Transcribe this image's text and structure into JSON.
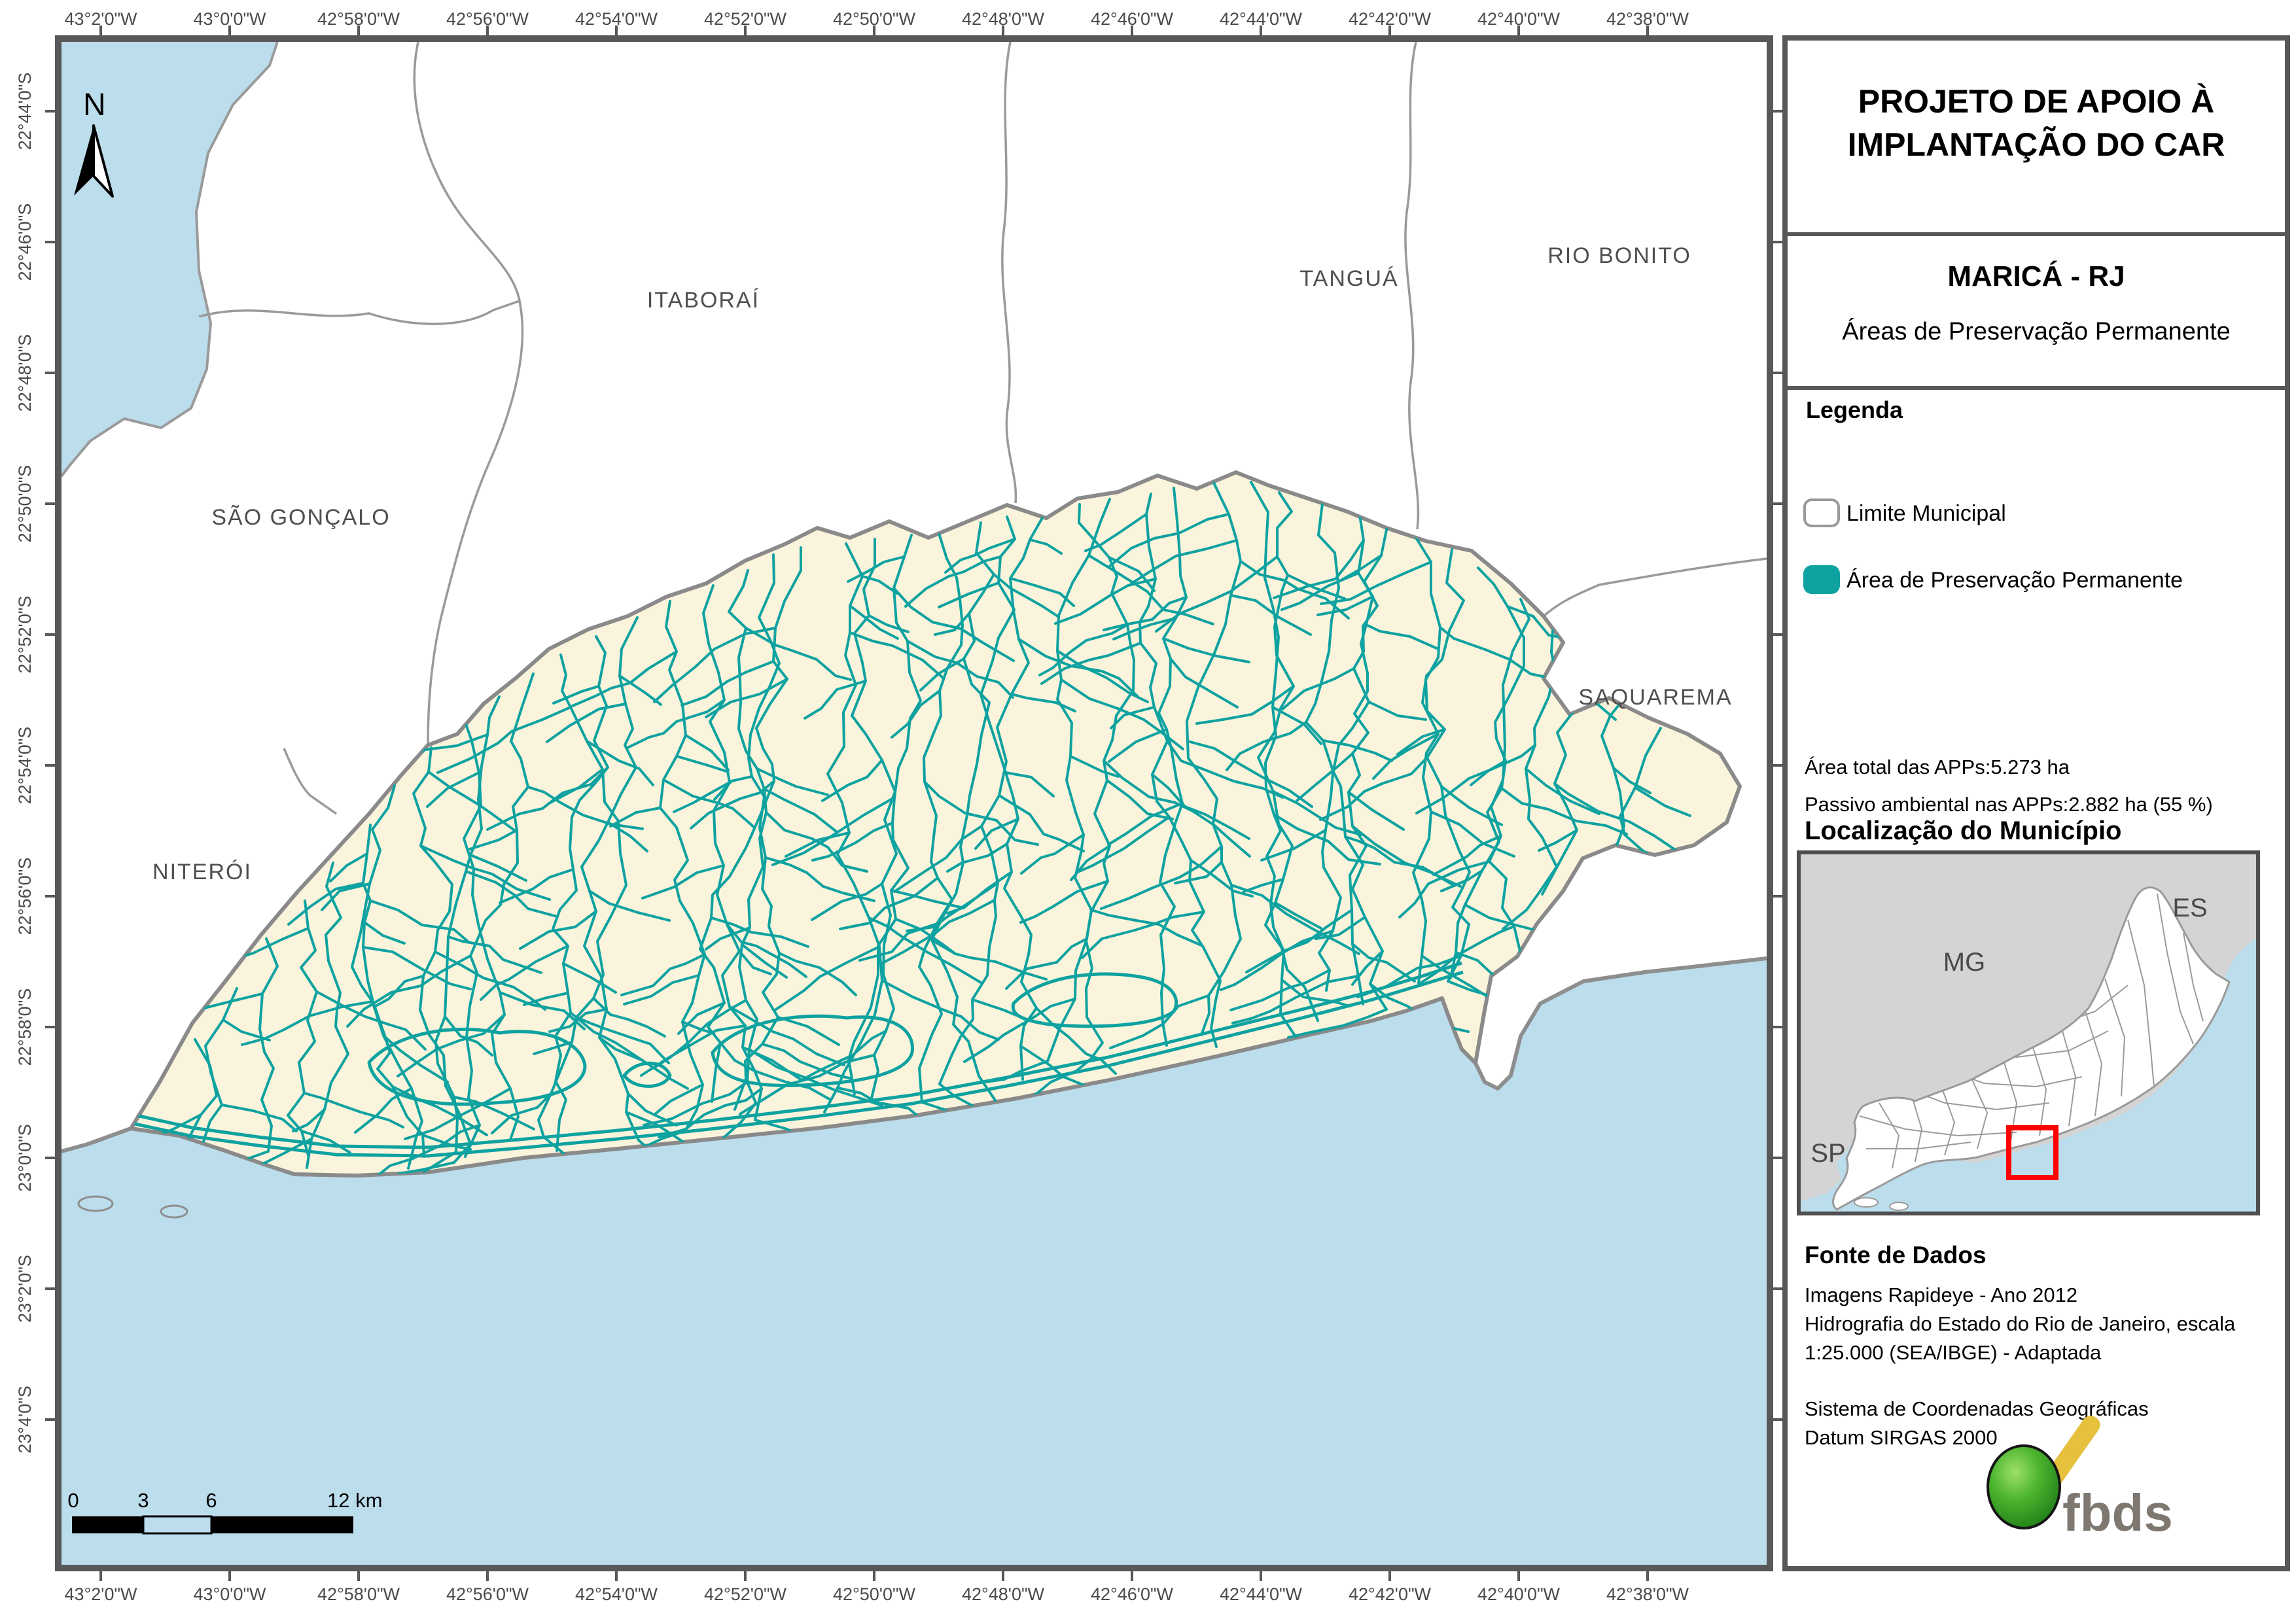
{
  "map": {
    "north_label": "N",
    "labels": {
      "sao_goncalo": "SÃO GONÇALO",
      "itaborai": "ITABORAÍ",
      "tangua": "TANGUÁ",
      "rio_bonito": "RIO BONITO",
      "saquarema": "SAQUAREMA",
      "niteroi": "NITERÓI"
    },
    "axis": {
      "top": [
        "43°2'0\"W",
        "43°0'0\"W",
        "42°58'0\"W",
        "42°56'0\"W",
        "42°54'0\"W",
        "42°52'0\"W",
        "42°50'0\"W",
        "42°48'0\"W",
        "42°46'0\"W",
        "42°44'0\"W",
        "42°42'0\"W",
        "42°40'0\"W",
        "42°38'0\"W"
      ],
      "bottom": [
        "43°2'0\"W",
        "43°0'0\"W",
        "42°58'0\"W",
        "42°56'0\"W",
        "42°54'0\"W",
        "42°52'0\"W",
        "42°50'0\"W",
        "42°48'0\"W",
        "42°46'0\"W",
        "42°44'0\"W",
        "42°42'0\"W",
        "42°40'0\"W",
        "42°38'0\"W"
      ],
      "left": [
        "22°44'0\"S",
        "22°46'0\"S",
        "22°48'0\"S",
        "22°50'0\"S",
        "22°52'0\"S",
        "22°54'0\"S",
        "22°56'0\"S",
        "22°58'0\"S",
        "23°0'0\"S",
        "23°2'0\"S",
        "23°4'0\"S"
      ]
    },
    "scalebar": {
      "t0": "0",
      "t3": "3",
      "t6": "6",
      "t12": "12 km"
    }
  },
  "panel": {
    "title_line1": "PROJETO DE APOIO À",
    "title_line2": "IMPLANTAÇÃO DO CAR",
    "municipality": "MARICÁ - RJ",
    "subtitle": "Áreas de Preservação Permanente",
    "legend": {
      "heading": "Legenda",
      "items": [
        {
          "label": "Limite Municipal"
        },
        {
          "label": "Área de Preservação Permanente"
        }
      ]
    },
    "stats": {
      "line1": "Área total das APPs:5.273  ha",
      "line2": "Passivo ambiental nas APPs:2.882  ha (55 %)"
    },
    "location": {
      "heading": "Localização do Município",
      "labels": {
        "mg": "MG",
        "es": "ES",
        "sp": "SP"
      }
    },
    "source": {
      "heading": "Fonte de Dados",
      "lines": [
        "Imagens Rapideye - Ano 2012",
        "Hidrografia do Estado do Rio de Janeiro, escala",
        "1:25.000 (SEA/IBGE) - Adaptada"
      ],
      "crs_lines": [
        "Sistema de Coordenadas Geográficas",
        "Datum SIRGAS 2000"
      ]
    },
    "logo_text": "fbds"
  },
  "colors": {
    "app_teal": "#0EA2A0",
    "municipality_fill": "#FBF4DC",
    "water_blue": "#BCDDEC",
    "boundary_gray": "#9A9A9A",
    "frame_gray": "#58585A",
    "highlight_red": "#FF0000",
    "inset_state_gray": "#D4D4D4",
    "logo_green": "#3DA52E",
    "logo_yellow": "#E5C13D",
    "logo_text_gray": "#7E7870"
  }
}
